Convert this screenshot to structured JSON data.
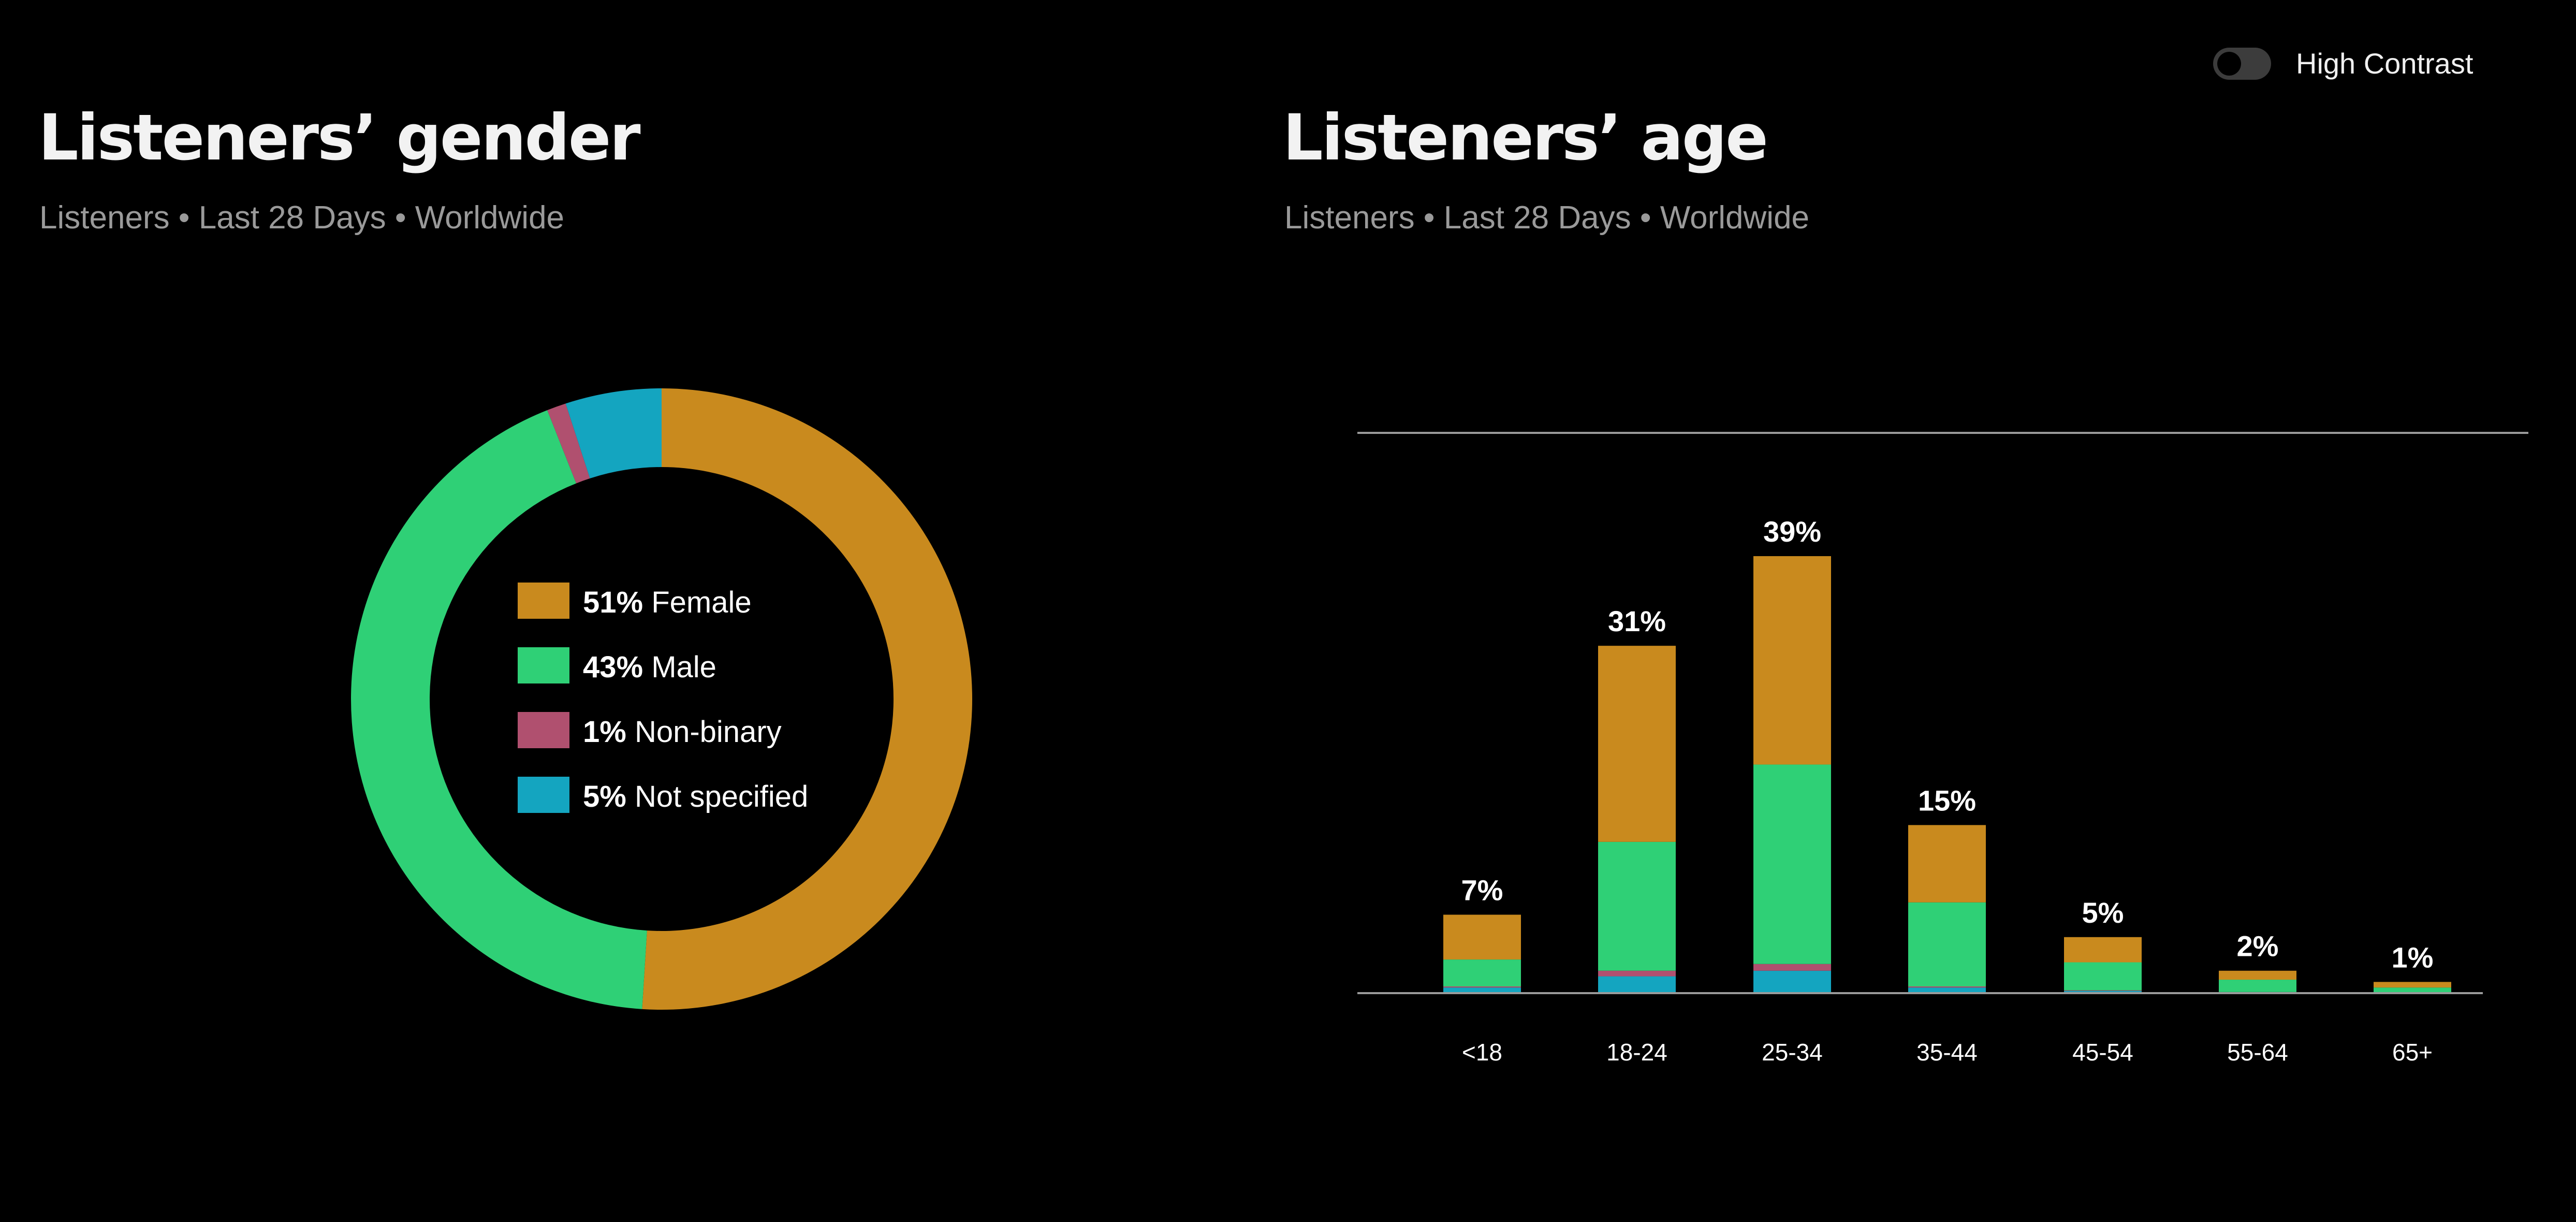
{
  "header": {
    "toggle_label": "High Contrast",
    "toggle_on": false
  },
  "gender": {
    "title": "Listeners’ gender",
    "subtitle": "Listeners • Last 28 Days • Worldwide"
  },
  "age": {
    "title": "Listeners’ age",
    "subtitle": "Listeners • Last 28 Days • Worldwide"
  },
  "colors": {
    "female": "#c98a1e",
    "male": "#2fd076",
    "nonbinary": "#b0506f",
    "not_specified": "#14a5c0",
    "axis": "#9a9a9a"
  },
  "chart_data": [
    {
      "type": "pie",
      "variant": "donut",
      "slices": [
        {
          "pct_label": "51%",
          "label": "Female",
          "value": 51,
          "color_key": "female"
        },
        {
          "pct_label": "43%",
          "label": "Male",
          "value": 43,
          "color_key": "male"
        },
        {
          "pct_label": "1%",
          "label": "Non-binary",
          "value": 1,
          "color_key": "nonbinary"
        },
        {
          "pct_label": "5%",
          "label": "Not specified",
          "value": 5,
          "color_key": "not_specified"
        }
      ],
      "legend_position": "center"
    },
    {
      "type": "bar",
      "stacked": true,
      "categories": [
        "<18",
        "18-24",
        "25-34",
        "35-44",
        "45-54",
        "55-64",
        "65+"
      ],
      "totals": [
        7,
        31,
        39,
        15,
        5,
        2,
        1
      ],
      "total_labels": [
        "7%",
        "31%",
        "39%",
        "15%",
        "5%",
        "2%",
        "1%"
      ],
      "series": [
        {
          "key": "not_specified",
          "values": [
            0.5,
            1.5,
            2.0,
            0.5,
            0.2,
            0.1,
            0.05
          ]
        },
        {
          "key": "nonbinary",
          "values": [
            0.1,
            0.5,
            0.6,
            0.1,
            0.05,
            0.0,
            0.0
          ]
        },
        {
          "key": "male",
          "values": [
            2.4,
            11.5,
            17.8,
            7.5,
            2.5,
            1.1,
            0.45
          ]
        },
        {
          "key": "female",
          "values": [
            4.0,
            17.5,
            18.6,
            6.9,
            2.25,
            0.8,
            0.5
          ]
        }
      ],
      "ylim": [
        0,
        50
      ],
      "grid": "top-line"
    }
  ]
}
